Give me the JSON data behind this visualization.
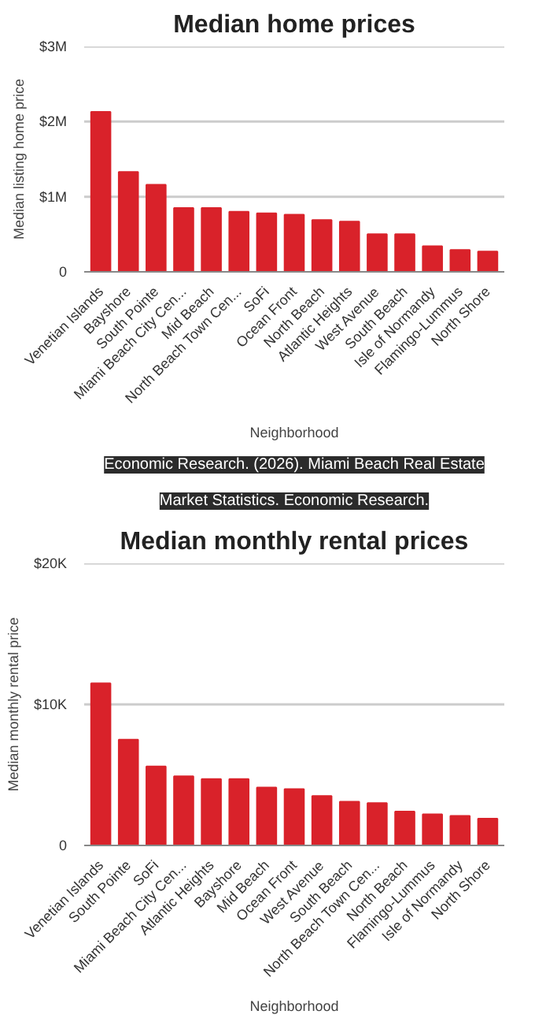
{
  "chart_data": [
    {
      "type": "bar",
      "title": "Median home prices",
      "xlabel": "Neighborhood",
      "ylabel": "Median listing home price",
      "categories": [
        "Venetian Islands",
        "Bayshore",
        "South Pointe",
        "Miami Beach City Cen...",
        "Mid Beach",
        "North Beach Town Cen...",
        "SoFi",
        "Ocean Front",
        "North Beach",
        "Atlantic Heights",
        "West Avenue",
        "South Beach",
        "Isle of Normandy",
        "Flamingo-Lummus",
        "North Shore"
      ],
      "values": [
        2130000,
        1330000,
        1160000,
        850000,
        850000,
        800000,
        780000,
        760000,
        690000,
        670000,
        500000,
        500000,
        340000,
        290000,
        270000
      ],
      "color": "#d9222a",
      "ylim": [
        0,
        3000000
      ],
      "yticks": [
        {
          "value": 0,
          "label": "0"
        },
        {
          "value": 1000000,
          "label": "$1M"
        },
        {
          "value": 2000000,
          "label": "$2M"
        },
        {
          "value": 3000000,
          "label": "$3M"
        }
      ],
      "grid": "y",
      "annotations": [
        "Economic Research. (2026). Miami Beach Real Estate Market Statistics. Economic Research."
      ]
    },
    {
      "type": "bar",
      "title": "Median monthly rental prices",
      "xlabel": "Neighborhood",
      "ylabel": "Median monthly rental price",
      "categories": [
        "Venetian Islands",
        "South Pointe",
        "SoFi",
        "Miami Beach City Cen...",
        "Atlantic Heights",
        "Bayshore",
        "Mid Beach",
        "Ocean Front",
        "West Avenue",
        "South Beach",
        "North Beach Town Cen...",
        "North Beach",
        "Flamingo-Lummus",
        "Isle of Normandy",
        "North Shore"
      ],
      "values": [
        11500,
        7500,
        5600,
        4900,
        4700,
        4700,
        4100,
        4000,
        3500,
        3100,
        3000,
        2400,
        2200,
        2100,
        1900
      ],
      "color": "#d9222a",
      "ylim": [
        0,
        20000
      ],
      "yticks": [
        {
          "value": 0,
          "label": "0"
        },
        {
          "value": 10000,
          "label": "$10K"
        },
        {
          "value": 20000,
          "label": "$20K"
        }
      ],
      "grid": "y"
    }
  ]
}
